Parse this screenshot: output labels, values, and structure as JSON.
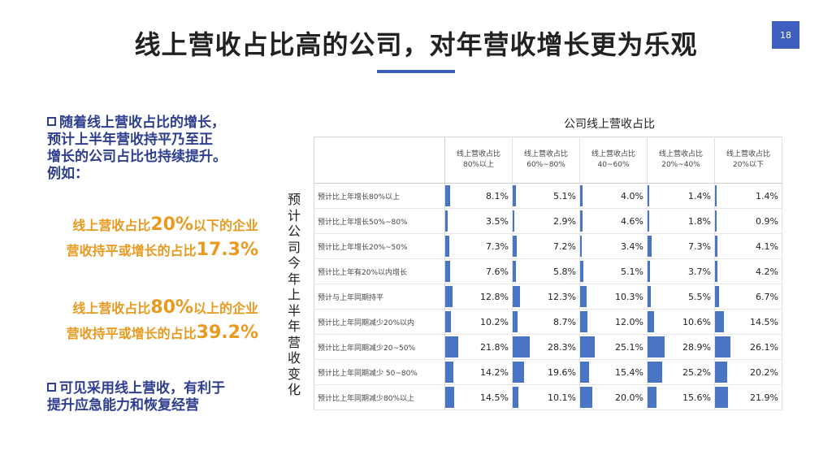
{
  "title": "线上营收占比高的公司，对年营收增长更为乐观",
  "page_number": "18",
  "left_panel": {
    "bullet1": "随着线上营收占比的增长，\n预计上半年营收持平乃至正\n增长的公司占比也持续提升。\n例如：",
    "highlight1": {
      "line1_pre": "线上营收占比",
      "line1_big": "20%",
      "line1_post": "以下的企业",
      "line2_pre": "营收持平或增长的占比",
      "line2_big": "17.3%"
    },
    "highlight2": {
      "line1_pre": "线上营收占比",
      "line1_big": "80%",
      "line1_post": "以上的企业",
      "line2_pre": "营收持平或增长的占比",
      "line2_big": "39.2%"
    },
    "bullet2": "可见采用线上营收，有利于\n提升应急能力和恢复经营"
  },
  "vertical_label": "预计公司今年上半年营收变化",
  "chart_data": {
    "type": "table",
    "title": "公司线上营收占比",
    "columns": [
      "线上营收占比\n80%以上",
      "线上营收占比\n60%~80%",
      "线上营收占比\n40~60%",
      "线上营收占比\n20%~40%",
      "线上营收占比\n20%以下"
    ],
    "rows": [
      {
        "label": "预计比上年增长80%以上",
        "values": [
          8.1,
          5.1,
          4.0,
          1.4,
          1.4
        ],
        "display": [
          "8.1%",
          "5.1%",
          "4.0%",
          "1.4%",
          "1.4%"
        ]
      },
      {
        "label": "预计比上年增长50%~80%",
        "values": [
          3.5,
          2.9,
          4.6,
          1.8,
          0.9
        ],
        "display": [
          "3.5%",
          "2.9%",
          "4.6%",
          "1.8%",
          "0.9%"
        ]
      },
      {
        "label": "预计比上年增长20%~50%",
        "values": [
          7.3,
          7.2,
          3.4,
          7.3,
          4.1
        ],
        "display": [
          "7.3%",
          "7.2%",
          "3.4%",
          "7.3%",
          "4.1%"
        ]
      },
      {
        "label": "预计比上年有20%以内增长",
        "values": [
          7.6,
          5.8,
          5.1,
          3.7,
          4.2
        ],
        "display": [
          "7.6%",
          "5.8%",
          "5.1%",
          "3.7%",
          "4.2%"
        ]
      },
      {
        "label": "预计与上年同期持平",
        "values": [
          12.8,
          12.3,
          10.3,
          5.5,
          6.7
        ],
        "display": [
          "12.8%",
          "12.3%",
          "10.3%",
          "5.5%",
          "6.7%"
        ]
      },
      {
        "label": "预计比上年同期减少20%以内",
        "values": [
          10.2,
          8.7,
          12.0,
          10.6,
          14.5
        ],
        "display": [
          "10.2%",
          "8.7%",
          "12.0%",
          "10.6%",
          "14.5%"
        ]
      },
      {
        "label": "预计比上年同期减少20~50%",
        "values": [
          21.8,
          28.3,
          25.1,
          28.9,
          26.1
        ],
        "display": [
          "21.8%",
          "28.3%",
          "25.1%",
          "28.9%",
          "26.1%"
        ]
      },
      {
        "label": "预计比上年同期减少 50~80%",
        "values": [
          14.2,
          19.6,
          15.4,
          25.2,
          20.2
        ],
        "display": [
          "14.2%",
          "19.6%",
          "15.4%",
          "25.2%",
          "20.2%"
        ]
      },
      {
        "label": "预计比上年同期减少80%以上",
        "values": [
          14.5,
          10.1,
          20.0,
          15.6,
          21.9
        ],
        "display": [
          "14.5%",
          "10.1%",
          "20.0%",
          "15.6%",
          "21.9%"
        ]
      }
    ],
    "bar_max": 100,
    "bar_color": "#4a74c4"
  },
  "colors": {
    "accent": "#3e5fbf",
    "bullet_text": "#2f3f8f",
    "highlight": "#e89a1f"
  },
  "icons": {
    "bullet": "square-bullet-icon"
  }
}
